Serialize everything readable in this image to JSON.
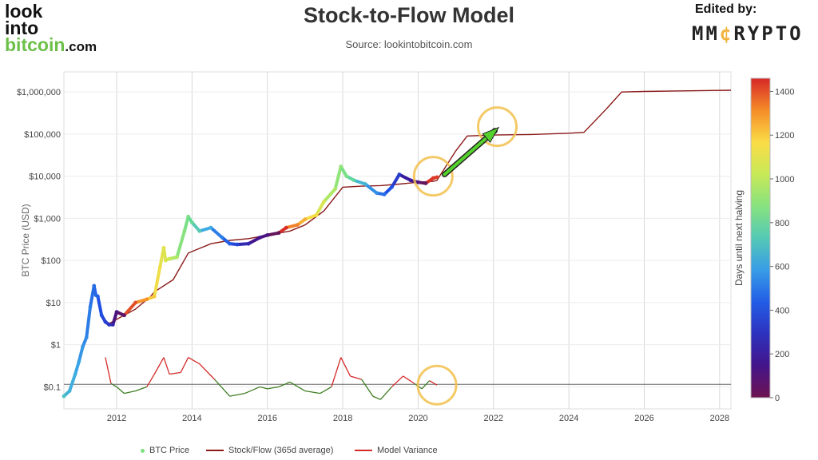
{
  "logo": {
    "line1": "look",
    "line2": "into",
    "line3": "bitcoin",
    "suffix": ".com"
  },
  "header": {
    "title": "Stock-to-Flow Model",
    "source": "Source: lookintobitcoin.com",
    "edited_by": "Edited by:",
    "brand_pre": "MM",
    "brand_c": "¢",
    "brand_post": "RYPTO"
  },
  "legend": {
    "btc": "BTC Price",
    "sf": "Stock/Flow (365d average)",
    "variance": "Model Variance"
  },
  "colors": {
    "stock_flow": "#8b1a1a",
    "variance_up": "#d42a2a",
    "variance_down": "#3e7d22",
    "circle": "#f2c14e",
    "arrow": "#55d12e"
  },
  "chart_data": {
    "type": "line",
    "title": "Stock-to-Flow Model",
    "ylabel": "BTC Price (USD)",
    "yscale": "log",
    "ylim": [
      0.03,
      3000000
    ],
    "xlim": [
      2010.6,
      2028.3
    ],
    "x_ticks": [
      2012,
      2014,
      2016,
      2018,
      2020,
      2022,
      2024,
      2026,
      2028
    ],
    "x_tick_labels": [
      "2012",
      "2014",
      "2016",
      "2018",
      "2020",
      "2022",
      "2024",
      "2026",
      "2028"
    ],
    "y_ticks": [
      0.1,
      1,
      10,
      100,
      1000,
      10000,
      100000,
      1000000
    ],
    "y_tick_labels": [
      "$0.1",
      "$1",
      "$10",
      "$100",
      "$1,000",
      "$10,000",
      "$100,000",
      "$1,000,000"
    ],
    "colorbar": {
      "label": "Days until next halving",
      "min": 0,
      "max": 1460,
      "ticks": [
        0,
        200,
        400,
        600,
        800,
        1000,
        1200,
        1400
      ]
    },
    "series": [
      {
        "name": "BTC Price",
        "marker": "scatter",
        "x": [
          2010.6,
          2010.75,
          2010.9,
          2011.0,
          2011.1,
          2011.2,
          2011.3,
          2011.4,
          2011.45,
          2011.5,
          2011.6,
          2011.7,
          2011.8,
          2011.9,
          2012.0,
          2012.2,
          2012.5,
          2012.8,
          2013.0,
          2013.15,
          2013.25,
          2013.3,
          2013.4,
          2013.6,
          2013.8,
          2013.9,
          2014.0,
          2014.2,
          2014.5,
          2014.8,
          2015.0,
          2015.2,
          2015.5,
          2015.8,
          2016.0,
          2016.3,
          2016.5,
          2016.8,
          2017.0,
          2017.3,
          2017.5,
          2017.8,
          2017.95,
          2018.1,
          2018.3,
          2018.6,
          2018.9,
          2019.1,
          2019.3,
          2019.5,
          2019.8,
          2020.0,
          2020.2,
          2020.4,
          2020.5
        ],
        "y": [
          0.06,
          0.08,
          0.2,
          0.4,
          0.9,
          1.5,
          8,
          25,
          15,
          14,
          5,
          3.5,
          3,
          3,
          6,
          5,
          10,
          12,
          14,
          70,
          200,
          100,
          110,
          120,
          500,
          1100,
          800,
          500,
          600,
          350,
          250,
          240,
          250,
          350,
          400,
          450,
          600,
          700,
          950,
          1200,
          2500,
          5000,
          17000,
          10000,
          8000,
          6500,
          4000,
          3700,
          5500,
          11000,
          8000,
          7200,
          6800,
          9000,
          9500
        ],
        "days_until_halving": [
          700,
          650,
          630,
          600,
          570,
          540,
          510,
          480,
          460,
          440,
          400,
          360,
          310,
          250,
          120,
          60,
          1400,
          1300,
          1200,
          1140,
          1100,
          1080,
          1040,
          960,
          880,
          850,
          800,
          730,
          620,
          510,
          440,
          370,
          260,
          150,
          120,
          30,
          1450,
          1330,
          1250,
          1150,
          1070,
          960,
          900,
          850,
          780,
          660,
          550,
          480,
          410,
          330,
          200,
          120,
          40,
          1440,
          1430
        ]
      },
      {
        "name": "Stock/Flow (365d average)",
        "x": [
          2011.75,
          2012.0,
          2012.5,
          2012.9,
          2013.0,
          2013.5,
          2013.9,
          2014.5,
          2015.0,
          2015.5,
          2016.0,
          2016.5,
          2016.6,
          2017.0,
          2017.5,
          2018.0,
          2018.5,
          2019.0,
          2019.5,
          2020.0,
          2020.4,
          2020.5,
          2021.0,
          2021.3,
          2022.0,
          2023.0,
          2024.0,
          2024.4,
          2025.0,
          2025.4,
          2026.0,
          2027.0,
          2028.3
        ],
        "y": [
          3,
          4,
          7,
          14,
          18,
          35,
          150,
          250,
          300,
          330,
          400,
          480,
          500,
          700,
          1500,
          5500,
          5800,
          6000,
          6500,
          7200,
          7600,
          8000,
          40000,
          90000,
          95000,
          98000,
          105000,
          110000,
          400000,
          1000000,
          1030000,
          1060000,
          1100000
        ]
      },
      {
        "name": "Model Variance",
        "x": [
          2011.7,
          2011.85,
          2012.0,
          2012.2,
          2012.5,
          2012.8,
          2013.0,
          2013.25,
          2013.4,
          2013.7,
          2013.9,
          2014.2,
          2014.6,
          2015.0,
          2015.4,
          2015.8,
          2016.0,
          2016.3,
          2016.6,
          2017.0,
          2017.4,
          2017.7,
          2017.95,
          2018.2,
          2018.5,
          2018.8,
          2019.0,
          2019.3,
          2019.6,
          2019.9,
          2020.1,
          2020.3,
          2020.5
        ],
        "y": [
          0.5,
          0.12,
          0.1,
          0.07,
          0.08,
          0.1,
          0.2,
          0.5,
          0.2,
          0.22,
          0.5,
          0.35,
          0.15,
          0.06,
          0.07,
          0.1,
          0.09,
          0.1,
          0.13,
          0.08,
          0.07,
          0.1,
          0.5,
          0.18,
          0.15,
          0.06,
          0.05,
          0.1,
          0.18,
          0.12,
          0.09,
          0.14,
          0.11
        ]
      }
    ],
    "annotations": [
      {
        "type": "circle",
        "x": 2020.4,
        "y": 10000
      },
      {
        "type": "circle",
        "x": 2022.1,
        "y": 150000
      },
      {
        "type": "circle",
        "x": 2020.5,
        "y": 0.11
      },
      {
        "type": "arrow",
        "from_x": 2020.7,
        "from_y": 11000,
        "to_x": 2022.1,
        "to_y": 150000
      }
    ]
  }
}
